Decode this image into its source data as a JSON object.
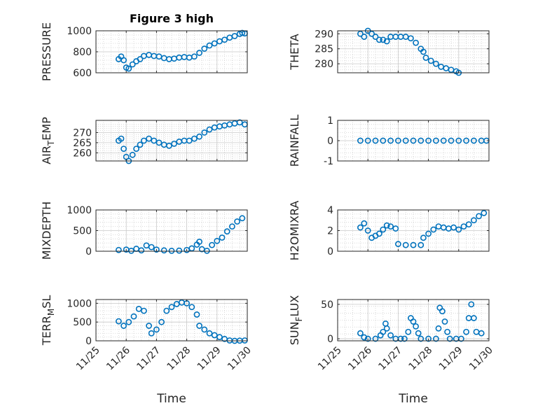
{
  "figure": {
    "title": "Figure 3 high",
    "marker_color": "#0072BD"
  },
  "chart_data": [
    {
      "type": "scatter",
      "title": "Figure 3 high",
      "ylabel": "PRESSURE",
      "xlabel": "",
      "xlim": [
        "11/25",
        "11/30"
      ],
      "ylim": [
        600,
        1000
      ],
      "yticks": [
        600,
        800,
        1000
      ],
      "xticks": [
        "11/25",
        "11/26",
        "11/27",
        "11/28",
        "11/29",
        "11/30"
      ],
      "grid": true,
      "points": [
        [
          "11/25 18:00",
          730
        ],
        [
          "11/25 20:00",
          755
        ],
        [
          "11/25 22:00",
          720
        ],
        [
          "11/26 00:00",
          650
        ],
        [
          "11/26 02:00",
          640
        ],
        [
          "11/26 05:00",
          680
        ],
        [
          "11/26 08:00",
          710
        ],
        [
          "11/26 11:00",
          730
        ],
        [
          "11/26 14:00",
          760
        ],
        [
          "11/26 18:00",
          770
        ],
        [
          "11/26 22:00",
          760
        ],
        [
          "11/27 02:00",
          755
        ],
        [
          "11/27 06:00",
          740
        ],
        [
          "11/27 10:00",
          730
        ],
        [
          "11/27 14:00",
          735
        ],
        [
          "11/27 18:00",
          745
        ],
        [
          "11/27 22:00",
          750
        ],
        [
          "11/28 02:00",
          745
        ],
        [
          "11/28 06:00",
          755
        ],
        [
          "11/28 10:00",
          790
        ],
        [
          "11/28 14:00",
          830
        ],
        [
          "11/28 18:00",
          860
        ],
        [
          "11/28 22:00",
          880
        ],
        [
          "11/29 02:00",
          900
        ],
        [
          "11/29 06:00",
          915
        ],
        [
          "11/29 10:00",
          935
        ],
        [
          "11/29 14:00",
          950
        ],
        [
          "11/29 18:00",
          970
        ],
        [
          "11/29 20:00",
          980
        ],
        [
          "11/29 22:00",
          975
        ]
      ]
    },
    {
      "type": "scatter",
      "ylabel": "THETA",
      "xlabel": "",
      "xlim": [
        "11/25",
        "11/30"
      ],
      "ylim": [
        277,
        291
      ],
      "yticks": [
        280,
        285,
        290
      ],
      "xticks": [
        "11/25",
        "11/26",
        "11/27",
        "11/28",
        "11/29",
        "11/30"
      ],
      "grid": true,
      "points": [
        [
          "11/25 18:00",
          290
        ],
        [
          "11/25 21:00",
          289
        ],
        [
          "11/26 00:00",
          291
        ],
        [
          "11/26 03:00",
          290
        ],
        [
          "11/26 06:00",
          289
        ],
        [
          "11/26 09:00",
          288
        ],
        [
          "11/26 12:00",
          288
        ],
        [
          "11/26 15:00",
          287.5
        ],
        [
          "11/26 18:00",
          289
        ],
        [
          "11/26 22:00",
          289
        ],
        [
          "11/27 02:00",
          289
        ],
        [
          "11/27 06:00",
          289
        ],
        [
          "11/27 10:00",
          288.5
        ],
        [
          "11/27 14:00",
          287
        ],
        [
          "11/27 18:00",
          285
        ],
        [
          "11/27 20:00",
          284
        ],
        [
          "11/27 22:00",
          282
        ],
        [
          "11/28 02:00",
          281
        ],
        [
          "11/28 06:00",
          280
        ],
        [
          "11/28 10:00",
          279
        ],
        [
          "11/28 14:00",
          278.5
        ],
        [
          "11/28 18:00",
          278
        ],
        [
          "11/28 22:00",
          277.5
        ],
        [
          "11/29 00:00",
          277
        ]
      ]
    },
    {
      "type": "scatter",
      "ylabel": "AIR_TEMP",
      "xlabel": "",
      "xlim": [
        "11/25",
        "11/30"
      ],
      "ylim": [
        256,
        276
      ],
      "yticks": [
        260,
        265,
        270
      ],
      "xticks": [
        "11/25",
        "11/26",
        "11/27",
        "11/28",
        "11/29",
        "11/30"
      ],
      "grid": true,
      "points": [
        [
          "11/25 18:00",
          266
        ],
        [
          "11/25 20:00",
          267
        ],
        [
          "11/25 22:00",
          262
        ],
        [
          "11/26 00:00",
          258
        ],
        [
          "11/26 02:00",
          256
        ],
        [
          "11/26 05:00",
          259
        ],
        [
          "11/26 08:00",
          262
        ],
        [
          "11/26 11:00",
          264
        ],
        [
          "11/26 14:00",
          266
        ],
        [
          "11/26 18:00",
          267
        ],
        [
          "11/26 22:00",
          266
        ],
        [
          "11/27 02:00",
          265
        ],
        [
          "11/27 06:00",
          264
        ],
        [
          "11/27 10:00",
          263.5
        ],
        [
          "11/27 14:00",
          264.5
        ],
        [
          "11/27 18:00",
          265.5
        ],
        [
          "11/27 22:00",
          266
        ],
        [
          "11/28 02:00",
          266
        ],
        [
          "11/28 06:00",
          267
        ],
        [
          "11/28 10:00",
          268
        ],
        [
          "11/28 14:00",
          270
        ],
        [
          "11/28 18:00",
          271.5
        ],
        [
          "11/28 22:00",
          272.5
        ],
        [
          "11/29 02:00",
          273
        ],
        [
          "11/29 06:00",
          273.5
        ],
        [
          "11/29 10:00",
          274
        ],
        [
          "11/29 14:00",
          274.5
        ],
        [
          "11/29 18:00",
          275
        ],
        [
          "11/29 22:00",
          274
        ]
      ]
    },
    {
      "type": "scatter",
      "ylabel": "RAINFALL",
      "xlabel": "",
      "xlim": [
        "11/25",
        "11/30"
      ],
      "ylim": [
        -1,
        1
      ],
      "yticks": [
        -1,
        0,
        1
      ],
      "xticks": [
        "11/25",
        "11/26",
        "11/27",
        "11/28",
        "11/29",
        "11/30"
      ],
      "grid": true,
      "points": [
        [
          "11/25 18:00",
          0
        ],
        [
          "11/26 00:00",
          0
        ],
        [
          "11/26 06:00",
          0
        ],
        [
          "11/26 12:00",
          0
        ],
        [
          "11/26 18:00",
          0
        ],
        [
          "11/27 00:00",
          0
        ],
        [
          "11/27 06:00",
          0
        ],
        [
          "11/27 12:00",
          0
        ],
        [
          "11/27 18:00",
          0
        ],
        [
          "11/28 00:00",
          0
        ],
        [
          "11/28 06:00",
          0
        ],
        [
          "11/28 12:00",
          0
        ],
        [
          "11/28 18:00",
          0
        ],
        [
          "11/29 00:00",
          0
        ],
        [
          "11/29 06:00",
          0
        ],
        [
          "11/29 12:00",
          0
        ],
        [
          "11/29 18:00",
          0
        ],
        [
          "11/29 22:00",
          0
        ]
      ]
    },
    {
      "type": "scatter",
      "ylabel": "MIXDEPTH",
      "xlabel": "",
      "xlim": [
        "11/25",
        "11/30"
      ],
      "ylim": [
        0,
        1000
      ],
      "yticks": [
        0,
        500,
        1000
      ],
      "xticks": [
        "11/25",
        "11/26",
        "11/27",
        "11/28",
        "11/29",
        "11/30"
      ],
      "grid": true,
      "points": [
        [
          "11/25 18:00",
          30
        ],
        [
          "11/26 00:00",
          40
        ],
        [
          "11/26 04:00",
          10
        ],
        [
          "11/26 08:00",
          60
        ],
        [
          "11/26 12:00",
          20
        ],
        [
          "11/26 16:00",
          140
        ],
        [
          "11/26 20:00",
          100
        ],
        [
          "11/27 00:00",
          40
        ],
        [
          "11/27 06:00",
          20
        ],
        [
          "11/27 12:00",
          10
        ],
        [
          "11/27 18:00",
          15
        ],
        [
          "11/28 00:00",
          30
        ],
        [
          "11/28 04:00",
          70
        ],
        [
          "11/28 08:00",
          160
        ],
        [
          "11/28 10:00",
          230
        ],
        [
          "11/28 12:00",
          50
        ],
        [
          "11/28 16:00",
          10
        ],
        [
          "11/28 20:00",
          150
        ],
        [
          "11/29 00:00",
          250
        ],
        [
          "11/29 04:00",
          330
        ],
        [
          "11/29 08:00",
          480
        ],
        [
          "11/29 12:00",
          600
        ],
        [
          "11/29 16:00",
          720
        ],
        [
          "11/29 20:00",
          800
        ]
      ]
    },
    {
      "type": "scatter",
      "ylabel": "H2OMIXRA",
      "xlabel": "",
      "xlim": [
        "11/25",
        "11/30"
      ],
      "ylim": [
        0,
        4
      ],
      "yticks": [
        0,
        2,
        4
      ],
      "xticks": [
        "11/25",
        "11/26",
        "11/27",
        "11/28",
        "11/29",
        "11/30"
      ],
      "grid": true,
      "points": [
        [
          "11/25 18:00",
          2.3
        ],
        [
          "11/25 21:00",
          2.7
        ],
        [
          "11/26 00:00",
          2.0
        ],
        [
          "11/26 03:00",
          1.3
        ],
        [
          "11/26 06:00",
          1.5
        ],
        [
          "11/26 09:00",
          1.7
        ],
        [
          "11/26 12:00",
          2.1
        ],
        [
          "11/26 15:00",
          2.5
        ],
        [
          "11/26 18:00",
          2.4
        ],
        [
          "11/26 22:00",
          2.2
        ],
        [
          "11/27 00:00",
          0.7
        ],
        [
          "11/27 06:00",
          0.6
        ],
        [
          "11/27 12:00",
          0.6
        ],
        [
          "11/27 18:00",
          0.6
        ],
        [
          "11/27 20:00",
          1.3
        ],
        [
          "11/28 00:00",
          1.7
        ],
        [
          "11/28 04:00",
          2.1
        ],
        [
          "11/28 08:00",
          2.4
        ],
        [
          "11/28 12:00",
          2.3
        ],
        [
          "11/28 16:00",
          2.2
        ],
        [
          "11/28 20:00",
          2.3
        ],
        [
          "11/29 00:00",
          2.1
        ],
        [
          "11/29 04:00",
          2.4
        ],
        [
          "11/29 08:00",
          2.6
        ],
        [
          "11/29 12:00",
          3.0
        ],
        [
          "11/29 16:00",
          3.4
        ],
        [
          "11/29 20:00",
          3.7
        ]
      ]
    },
    {
      "type": "scatter",
      "ylabel": "TERR_MSL",
      "xlabel": "Time",
      "xlim": [
        "11/25",
        "11/30"
      ],
      "ylim": [
        0,
        1100
      ],
      "yticks": [
        0,
        500,
        1000
      ],
      "xticks": [
        "11/25",
        "11/26",
        "11/27",
        "11/28",
        "11/29",
        "11/30"
      ],
      "grid": true,
      "points": [
        [
          "11/25 18:00",
          520
        ],
        [
          "11/25 22:00",
          400
        ],
        [
          "11/26 02:00",
          500
        ],
        [
          "11/26 06:00",
          650
        ],
        [
          "11/26 10:00",
          850
        ],
        [
          "11/26 14:00",
          800
        ],
        [
          "11/26 18:00",
          400
        ],
        [
          "11/26 20:00",
          200
        ],
        [
          "11/27 00:00",
          300
        ],
        [
          "11/27 04:00",
          500
        ],
        [
          "11/27 08:00",
          800
        ],
        [
          "11/27 12:00",
          900
        ],
        [
          "11/27 16:00",
          980
        ],
        [
          "11/27 20:00",
          1020
        ],
        [
          "11/28 00:00",
          1000
        ],
        [
          "11/28 04:00",
          900
        ],
        [
          "11/28 08:00",
          700
        ],
        [
          "11/28 10:00",
          400
        ],
        [
          "11/28 14:00",
          300
        ],
        [
          "11/28 18:00",
          200
        ],
        [
          "11/28 22:00",
          150
        ],
        [
          "11/29 02:00",
          100
        ],
        [
          "11/29 06:00",
          50
        ],
        [
          "11/29 10:00",
          10
        ],
        [
          "11/29 14:00",
          0
        ],
        [
          "11/29 18:00",
          5
        ],
        [
          "11/29 22:00",
          10
        ]
      ]
    },
    {
      "type": "scatter",
      "ylabel": "SUN_FLUX",
      "xlabel": "Time",
      "xlim": [
        "11/25",
        "11/30"
      ],
      "ylim": [
        -3,
        57
      ],
      "yticks": [
        0,
        50
      ],
      "xticks": [
        "11/25",
        "11/26",
        "11/27",
        "11/28",
        "11/29",
        "11/30"
      ],
      "grid": true,
      "points": [
        [
          "11/25 18:00",
          8
        ],
        [
          "11/25 21:00",
          2
        ],
        [
          "11/26 00:00",
          0
        ],
        [
          "11/26 06:00",
          0
        ],
        [
          "11/26 10:00",
          5
        ],
        [
          "11/26 12:00",
          10
        ],
        [
          "11/26 14:00",
          22
        ],
        [
          "11/26 15:00",
          15
        ],
        [
          "11/26 18:00",
          5
        ],
        [
          "11/26 22:00",
          0
        ],
        [
          "11/27 02:00",
          0
        ],
        [
          "11/27 05:00",
          0
        ],
        [
          "11/27 08:00",
          10
        ],
        [
          "11/27 10:00",
          30
        ],
        [
          "11/27 12:00",
          25
        ],
        [
          "11/27 14:00",
          18
        ],
        [
          "11/27 16:00",
          8
        ],
        [
          "11/27 18:00",
          0
        ],
        [
          "11/28 00:00",
          0
        ],
        [
          "11/28 06:00",
          0
        ],
        [
          "11/28 08:00",
          15
        ],
        [
          "11/28 09:00",
          45
        ],
        [
          "11/28 11:00",
          40
        ],
        [
          "11/28 13:00",
          25
        ],
        [
          "11/28 15:00",
          10
        ],
        [
          "11/28 17:00",
          0
        ],
        [
          "11/28 22:00",
          0
        ],
        [
          "11/29 02:00",
          0
        ],
        [
          "11/29 06:00",
          10
        ],
        [
          "11/29 08:00",
          30
        ],
        [
          "11/29 10:00",
          50
        ],
        [
          "11/29 12:00",
          30
        ],
        [
          "11/29 14:00",
          10
        ],
        [
          "11/29 18:00",
          8
        ]
      ]
    }
  ]
}
